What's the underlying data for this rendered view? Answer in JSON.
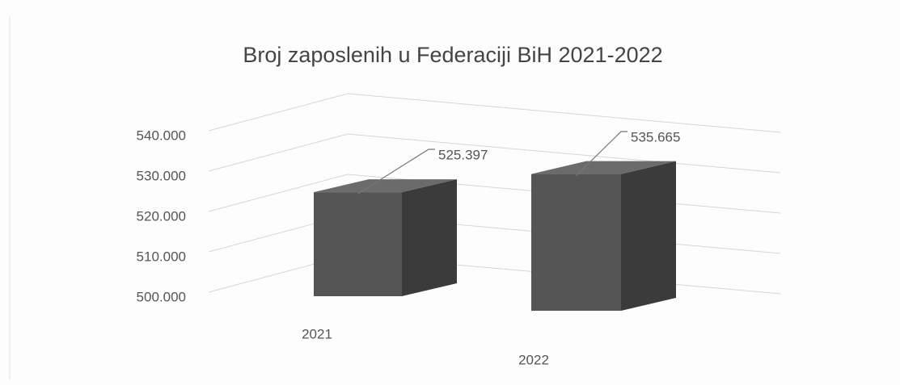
{
  "chart_data": {
    "type": "bar3d",
    "title": "Broj zaposlenih u Federaciji BiH 2021-2022",
    "categories": [
      "2021",
      "2022"
    ],
    "values": [
      525397,
      535665
    ],
    "value_labels": [
      "525.397",
      "535.665"
    ],
    "color": "#555555",
    "ylim": [
      500000,
      540000
    ],
    "yticks": [
      {
        "value": 500000,
        "label": "500.000"
      },
      {
        "value": 510000,
        "label": "510.000"
      },
      {
        "value": 520000,
        "label": "520.000"
      },
      {
        "value": 530000,
        "label": "530.000"
      },
      {
        "value": 540000,
        "label": "540.000"
      }
    ],
    "grid": true
  }
}
